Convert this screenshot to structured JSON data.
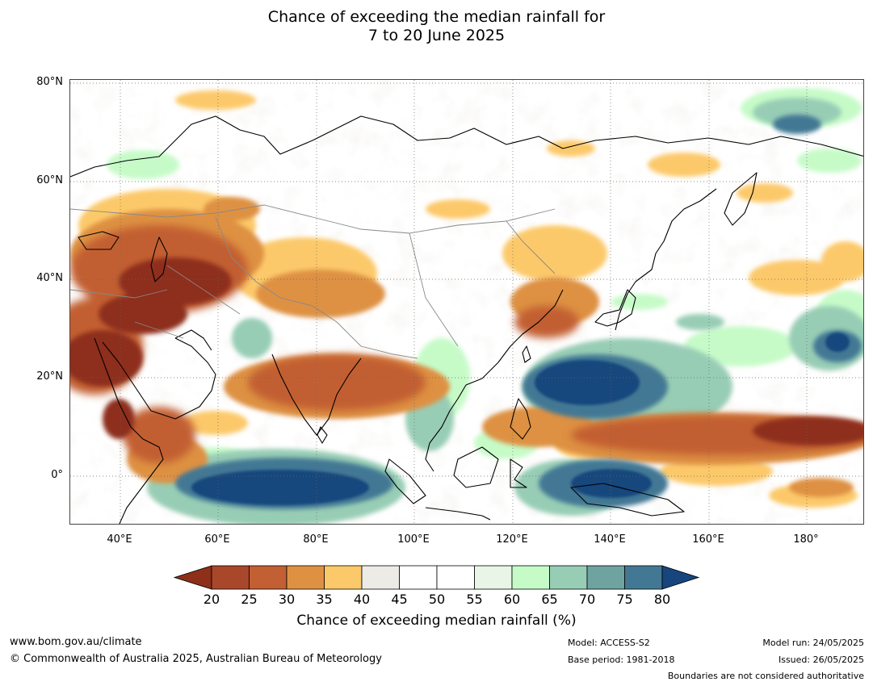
{
  "title": {
    "line1": "Chance of exceeding the median rainfall for",
    "line2": "7 to 20 June 2025"
  },
  "map": {
    "lat_labels": [
      "80°N",
      "60°N",
      "40°N",
      "20°N",
      "0°"
    ],
    "lon_labels": [
      "40°E",
      "60°E",
      "80°E",
      "100°E",
      "120°E",
      "140°E",
      "160°E",
      "180°"
    ],
    "extent": {
      "lon_min": 30,
      "lon_max": 192,
      "lat_min": -10,
      "lat_max": 80
    }
  },
  "colorbar": {
    "ticks": [
      "20",
      "25",
      "30",
      "35",
      "40",
      "45",
      "50",
      "55",
      "60",
      "65",
      "70",
      "75",
      "80"
    ],
    "colors": [
      "#8e2f1a",
      "#a9472a",
      "#c25f33",
      "#de9143",
      "#fcc96a",
      "#edebe6",
      "#ffffff",
      "#ffffff",
      "#e9f6e7",
      "#c6fbc8",
      "#98cdb5",
      "#6ea3a0",
      "#437894",
      "#16467d"
    ],
    "label": "Chance of exceeding median rainfall (%)"
  },
  "footer": {
    "website": "www.bom.gov.au/climate",
    "copyright": "© Commonwealth of Australia 2025, Australian Bureau of Meteorology",
    "model": "Model: ACCESS-S2",
    "base_period": "Base period: 1981-2018",
    "model_run": "Model run: 24/05/2025",
    "issued": "Issued: 26/05/2025",
    "boundaries": "Boundaries are not considered authoritative"
  }
}
